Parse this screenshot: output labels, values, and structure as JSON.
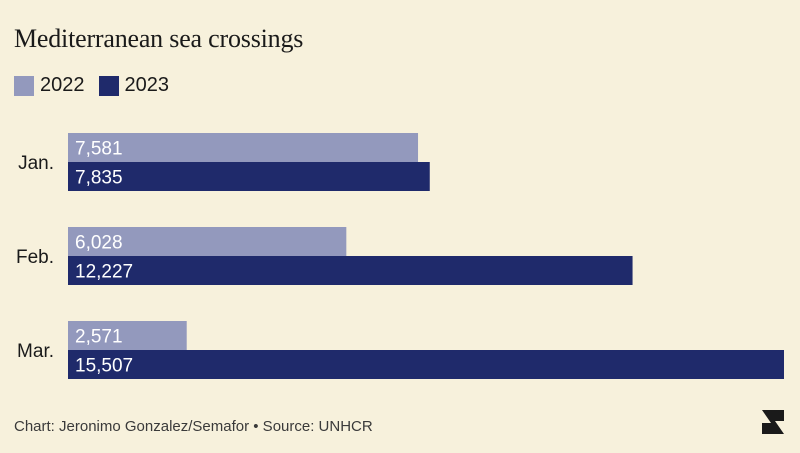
{
  "header": {
    "title": "Mediterranean sea crossings"
  },
  "legend": [
    {
      "label": "2022",
      "color": "#9399bd"
    },
    {
      "label": "2023",
      "color": "#1f2a6b"
    }
  ],
  "footer": {
    "credit": "Chart: Jeronimo Gonzalez/Semafor • Source: UNHCR"
  },
  "logo": {
    "icon": "semafor-logo-icon"
  },
  "chart_data": {
    "type": "bar",
    "orientation": "horizontal",
    "title": "Mediterranean sea crossings",
    "categories": [
      "Jan.",
      "Feb.",
      "Mar."
    ],
    "series": [
      {
        "name": "2022",
        "values": [
          7581,
          6028,
          2571
        ],
        "labels": [
          "7,581",
          "6,028",
          "2,571"
        ],
        "color": "#9399bd"
      },
      {
        "name": "2023",
        "values": [
          7835,
          12227,
          15507
        ],
        "labels": [
          "7,835",
          "12,227",
          "15,507"
        ],
        "color": "#1f2a6b"
      }
    ],
    "xlim": [
      0,
      15507
    ],
    "grid": false,
    "legend_position": "top-left"
  }
}
